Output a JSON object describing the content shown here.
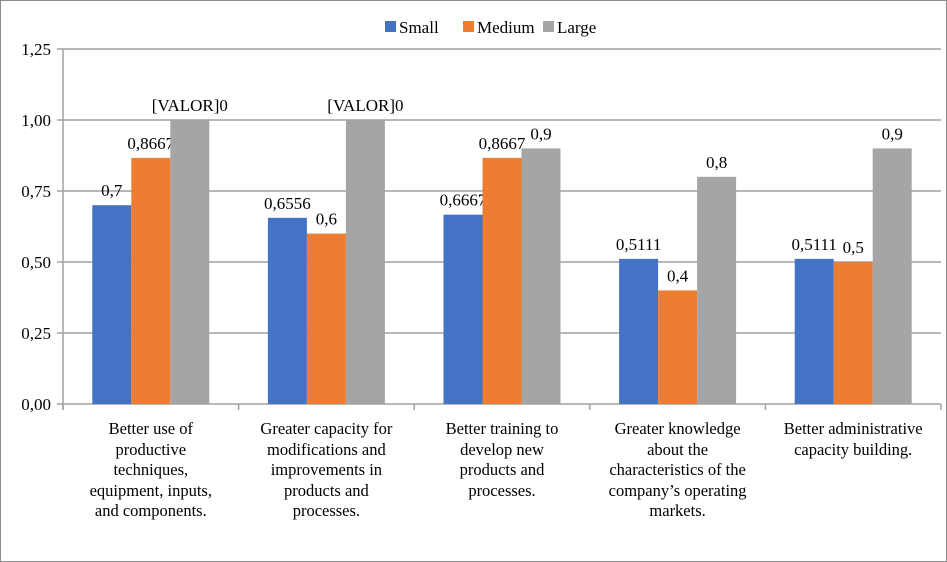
{
  "chart_data": {
    "type": "bar",
    "categories": [
      "Better use of\nproductive\ntechniques,\nequipment, inputs,\nand components.",
      "Greater capacity for\nmodifications and\nimprovements in\nproducts and\nprocesses.",
      "Better training to\ndevelop new\nproducts and\nprocesses.",
      "Greater knowledge\nabout the\ncharacteristics of the\ncompany’s operating\nmarkets.",
      "Better administrative\ncapacity building."
    ],
    "series": [
      {
        "name": "Small",
        "color": "#4472C4",
        "values": [
          0.7,
          0.6556,
          0.6667,
          0.5111,
          0.5111
        ],
        "labels": [
          "0,7",
          "0,6556",
          "0,6667",
          "0,5111",
          "0,5111"
        ]
      },
      {
        "name": "Medium",
        "color": "#ED7D31",
        "values": [
          0.8667,
          0.6,
          0.8667,
          0.4,
          0.5
        ],
        "labels": [
          "0,8667",
          "0,6",
          "0,8667",
          "0,4",
          "0,5"
        ]
      },
      {
        "name": "Large",
        "color": "#A5A5A5",
        "values": [
          1.0,
          1.0,
          0.9,
          0.8,
          0.9
        ],
        "labels": [
          "[VALOR]0",
          "[VALOR]0",
          "0,9",
          "0,8",
          "0,9"
        ]
      }
    ],
    "yticks": [
      "0,00",
      "0,25",
      "0,50",
      "0,75",
      "1,00",
      "1,25"
    ],
    "ylim": [
      0,
      1.25
    ],
    "grid": true,
    "legend": "top-center",
    "title": "",
    "xlabel": "",
    "ylabel": ""
  }
}
